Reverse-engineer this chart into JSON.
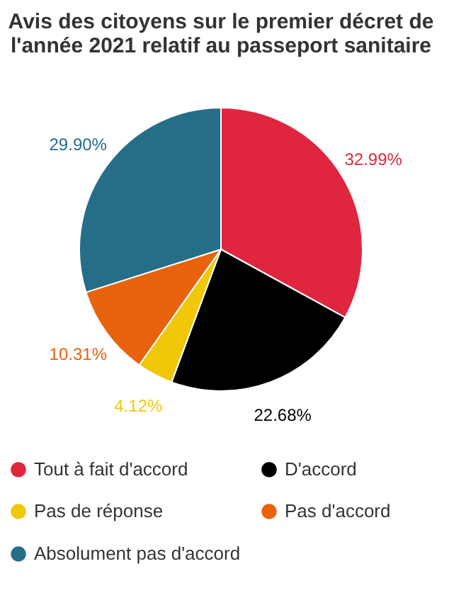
{
  "chart_data": {
    "type": "pie",
    "title": "Avis des citoyens sur le premier décret de l'année 2021 relatif au passeport sanitaire",
    "categories": [
      "Tout à fait d'accord",
      "D'accord",
      "Pas de réponse",
      "Pas d'accord",
      "Absolument pas d'accord"
    ],
    "values": [
      32.99,
      22.68,
      4.12,
      10.31,
      29.9
    ],
    "value_labels": [
      "32.99%",
      "22.68%",
      "4.12%",
      "10.31%",
      "29.90%"
    ],
    "colors": [
      "#e0263f",
      "#000000",
      "#f0c808",
      "#e8630c",
      "#246e87"
    ],
    "legend": "bottom"
  }
}
